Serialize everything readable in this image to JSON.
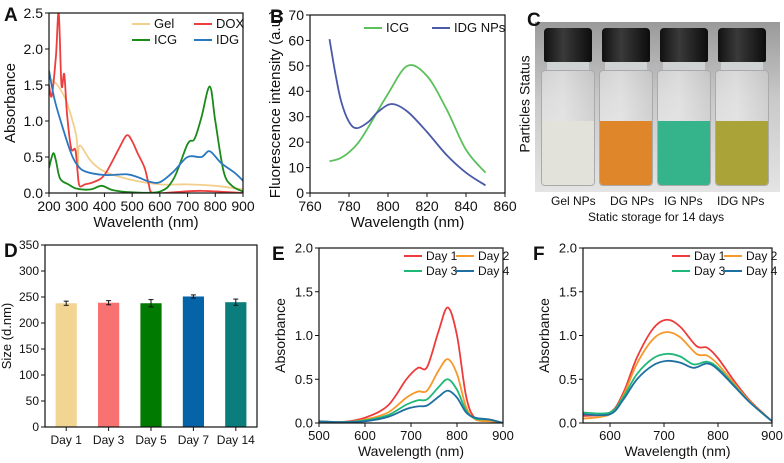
{
  "figure": {
    "panel_c": {
      "panel": "C",
      "ylabel": "Particles Status",
      "samples": [
        {
          "label": "Gel NPs",
          "color": "#e2e2da"
        },
        {
          "label": "DG NPs",
          "color": "#e0862a"
        },
        {
          "label": "IG NPs",
          "color": "#35b38a"
        },
        {
          "label": "IDG NPs",
          "color": "#aaa337"
        }
      ],
      "caption": "Static storage for 14 days"
    }
  },
  "chart_data": [
    {
      "panel": "A",
      "type": "line",
      "title": "",
      "xlabel": "Wavelenth (nm)",
      "ylabel": "Absorbance",
      "xlim": [
        200,
        900
      ],
      "ylim": [
        0,
        2.5
      ],
      "xticks": [
        200,
        300,
        400,
        500,
        600,
        700,
        800,
        900
      ],
      "yticks": [
        0,
        0.5,
        1.0,
        1.5,
        2.0,
        2.5
      ],
      "ydec": 1,
      "legend": "top-right",
      "series": [
        {
          "name": "Gel",
          "color": "#f3cf8c",
          "x": [
            200,
            230,
            260,
            285,
            300,
            305,
            310,
            350,
            400,
            500,
            600,
            700,
            800,
            900
          ],
          "y": [
            1.6,
            1.5,
            1.3,
            1.0,
            0.75,
            0.35,
            0.66,
            0.45,
            0.3,
            0.18,
            0.12,
            0.12,
            0.1,
            0.05
          ]
        },
        {
          "name": "DOX",
          "color": "#ee3d3d",
          "x": [
            200,
            210,
            225,
            235,
            245,
            255,
            265,
            280,
            295,
            303,
            310,
            330,
            360,
            400,
            450,
            480,
            500,
            520,
            545,
            560,
            575,
            650,
            750,
            900
          ],
          "y": [
            1.5,
            1.35,
            1.9,
            2.5,
            1.5,
            1.65,
            1.1,
            0.62,
            0.6,
            0.3,
            0.1,
            0.12,
            0.15,
            0.25,
            0.6,
            0.8,
            0.72,
            0.55,
            0.35,
            0.12,
            0.0,
            0.01,
            0.03,
            0.0
          ]
        },
        {
          "name": "ICG",
          "color": "#1a8a1a",
          "x": [
            200,
            215,
            225,
            240,
            270,
            300,
            350,
            390,
            430,
            500,
            600,
            650,
            700,
            725,
            750,
            780,
            800,
            830,
            860,
            900
          ],
          "y": [
            0.35,
            0.55,
            0.45,
            0.2,
            0.12,
            0.06,
            0.05,
            0.1,
            0.04,
            0.01,
            0.02,
            0.2,
            0.68,
            0.75,
            1.05,
            1.48,
            1.0,
            0.3,
            0.1,
            0.02
          ]
        },
        {
          "name": "IDG",
          "color": "#2a78c0",
          "x": [
            200,
            220,
            250,
            280,
            300,
            330,
            400,
            480,
            520,
            560,
            600,
            650,
            700,
            750,
            780,
            820,
            870,
            900
          ],
          "y": [
            1.7,
            1.3,
            0.9,
            0.55,
            0.4,
            0.3,
            0.25,
            0.26,
            0.22,
            0.16,
            0.15,
            0.3,
            0.5,
            0.5,
            0.58,
            0.42,
            0.28,
            0.17
          ]
        }
      ]
    },
    {
      "panel": "B",
      "type": "line",
      "title": "",
      "xlabel": "Wavelength (nm)",
      "ylabel": "Fluorescence intensity (a.u.)",
      "xlim": [
        760,
        860
      ],
      "ylim": [
        0,
        70
      ],
      "xticks": [
        760,
        780,
        800,
        820,
        840,
        860
      ],
      "yticks": [
        0,
        10,
        20,
        30,
        40,
        50,
        60,
        70
      ],
      "ydec": 0,
      "legend": "top-right",
      "series": [
        {
          "name": "ICG",
          "color": "#5cc05c",
          "x": [
            770,
            775,
            780,
            785,
            790,
            800,
            810,
            820,
            830,
            840,
            850
          ],
          "y": [
            12.5,
            13.5,
            16,
            20,
            26,
            39,
            50,
            46,
            33,
            17,
            8
          ]
        },
        {
          "name": "IDG NPs",
          "color": "#4a5aa8",
          "x": [
            770,
            773,
            776,
            780,
            784,
            790,
            795,
            802,
            810,
            820,
            830,
            840,
            850
          ],
          "y": [
            60.5,
            47,
            36,
            28,
            25.5,
            28,
            32,
            35,
            32,
            24,
            15,
            8,
            3
          ]
        }
      ]
    },
    {
      "panel": "D",
      "type": "bar",
      "title": "",
      "xlabel": "",
      "ylabel": "Size (d.nm)",
      "ylim": [
        0,
        350
      ],
      "yticks": [
        0,
        50,
        100,
        150,
        200,
        250,
        300,
        350
      ],
      "ydec": 0,
      "categories": [
        "Day 1",
        "Day 3",
        "Day 5",
        "Day 7",
        "Day 14"
      ],
      "values": [
        238,
        239,
        238,
        251,
        240
      ],
      "errors": [
        4,
        4,
        7,
        3,
        6
      ],
      "colors": [
        "#f3d593",
        "#f87272",
        "#007a00",
        "#0563a8",
        "#0b7d7d"
      ]
    },
    {
      "panel": "E",
      "type": "line",
      "title": "",
      "xlabel": "Wavelength (nm)",
      "ylabel": "Absorbance",
      "xlim": [
        500,
        900
      ],
      "ylim": [
        0,
        2.0
      ],
      "xticks": [
        500,
        600,
        700,
        800,
        900
      ],
      "yticks": [
        0,
        0.5,
        1.0,
        1.5,
        2.0
      ],
      "ydec": 1,
      "legend": "top-right",
      "series": [
        {
          "name": "Day 1",
          "color": "#ee3b3b",
          "x": [
            500,
            550,
            600,
            650,
            690,
            715,
            735,
            760,
            780,
            800,
            820,
            840,
            870,
            900
          ],
          "y": [
            0.01,
            0.01,
            0.06,
            0.2,
            0.5,
            0.63,
            0.64,
            1.05,
            1.32,
            1.0,
            0.3,
            0.05,
            0.04,
            0.0
          ]
        },
        {
          "name": "Day 2",
          "color": "#f7982a",
          "x": [
            500,
            550,
            600,
            650,
            690,
            715,
            735,
            760,
            780,
            800,
            820,
            840,
            870,
            900
          ],
          "y": [
            0.02,
            0.01,
            0.04,
            0.12,
            0.29,
            0.36,
            0.37,
            0.6,
            0.73,
            0.56,
            0.18,
            0.04,
            0.02,
            0.0
          ]
        },
        {
          "name": "Day 3",
          "color": "#1fb878",
          "x": [
            500,
            550,
            600,
            650,
            690,
            715,
            735,
            760,
            780,
            800,
            820,
            840,
            870,
            900
          ],
          "y": [
            0.02,
            0.01,
            0.03,
            0.09,
            0.21,
            0.26,
            0.27,
            0.41,
            0.5,
            0.38,
            0.14,
            0.05,
            0.04,
            0.0
          ]
        },
        {
          "name": "Day 4",
          "color": "#1f6fa0",
          "x": [
            500,
            550,
            600,
            650,
            690,
            715,
            735,
            760,
            780,
            800,
            820,
            840,
            870,
            900
          ],
          "y": [
            0.02,
            0.01,
            0.02,
            0.07,
            0.16,
            0.19,
            0.2,
            0.3,
            0.37,
            0.29,
            0.12,
            0.06,
            0.04,
            0.0
          ]
        }
      ]
    },
    {
      "panel": "F",
      "type": "line",
      "title": "",
      "xlabel": "Wavelength (nm)",
      "ylabel": "Absorbance",
      "xlim": [
        550,
        900
      ],
      "ylim": [
        0,
        2.0
      ],
      "xticks": [
        600,
        700,
        800,
        900
      ],
      "yticks": [
        0,
        0.5,
        1.0,
        1.5,
        2.0
      ],
      "ydec": 1,
      "legend": "top-right",
      "series": [
        {
          "name": "Day 1",
          "color": "#ee3b3b",
          "x": [
            550,
            600,
            625,
            650,
            680,
            705,
            730,
            760,
            780,
            800,
            830,
            860,
            900
          ],
          "y": [
            0.08,
            0.12,
            0.35,
            0.75,
            1.08,
            1.18,
            1.1,
            0.88,
            0.86,
            0.74,
            0.48,
            0.25,
            0.02
          ]
        },
        {
          "name": "Day 2",
          "color": "#f7982a",
          "x": [
            550,
            600,
            625,
            650,
            680,
            705,
            730,
            760,
            780,
            800,
            830,
            860,
            900
          ],
          "y": [
            0.05,
            0.1,
            0.32,
            0.68,
            0.96,
            1.04,
            0.98,
            0.79,
            0.77,
            0.67,
            0.45,
            0.24,
            0.02
          ]
        },
        {
          "name": "Day 3",
          "color": "#1fb878",
          "x": [
            550,
            600,
            625,
            650,
            680,
            705,
            730,
            755,
            780,
            800,
            830,
            860,
            900
          ],
          "y": [
            0.12,
            0.12,
            0.3,
            0.56,
            0.74,
            0.79,
            0.76,
            0.67,
            0.7,
            0.63,
            0.43,
            0.23,
            0.02
          ]
        },
        {
          "name": "Day 4",
          "color": "#1f6fa0",
          "x": [
            550,
            600,
            625,
            650,
            680,
            705,
            730,
            755,
            780,
            800,
            830,
            860,
            900
          ],
          "y": [
            0.1,
            0.1,
            0.27,
            0.5,
            0.66,
            0.71,
            0.69,
            0.63,
            0.68,
            0.61,
            0.42,
            0.23,
            0.02
          ]
        }
      ]
    }
  ]
}
